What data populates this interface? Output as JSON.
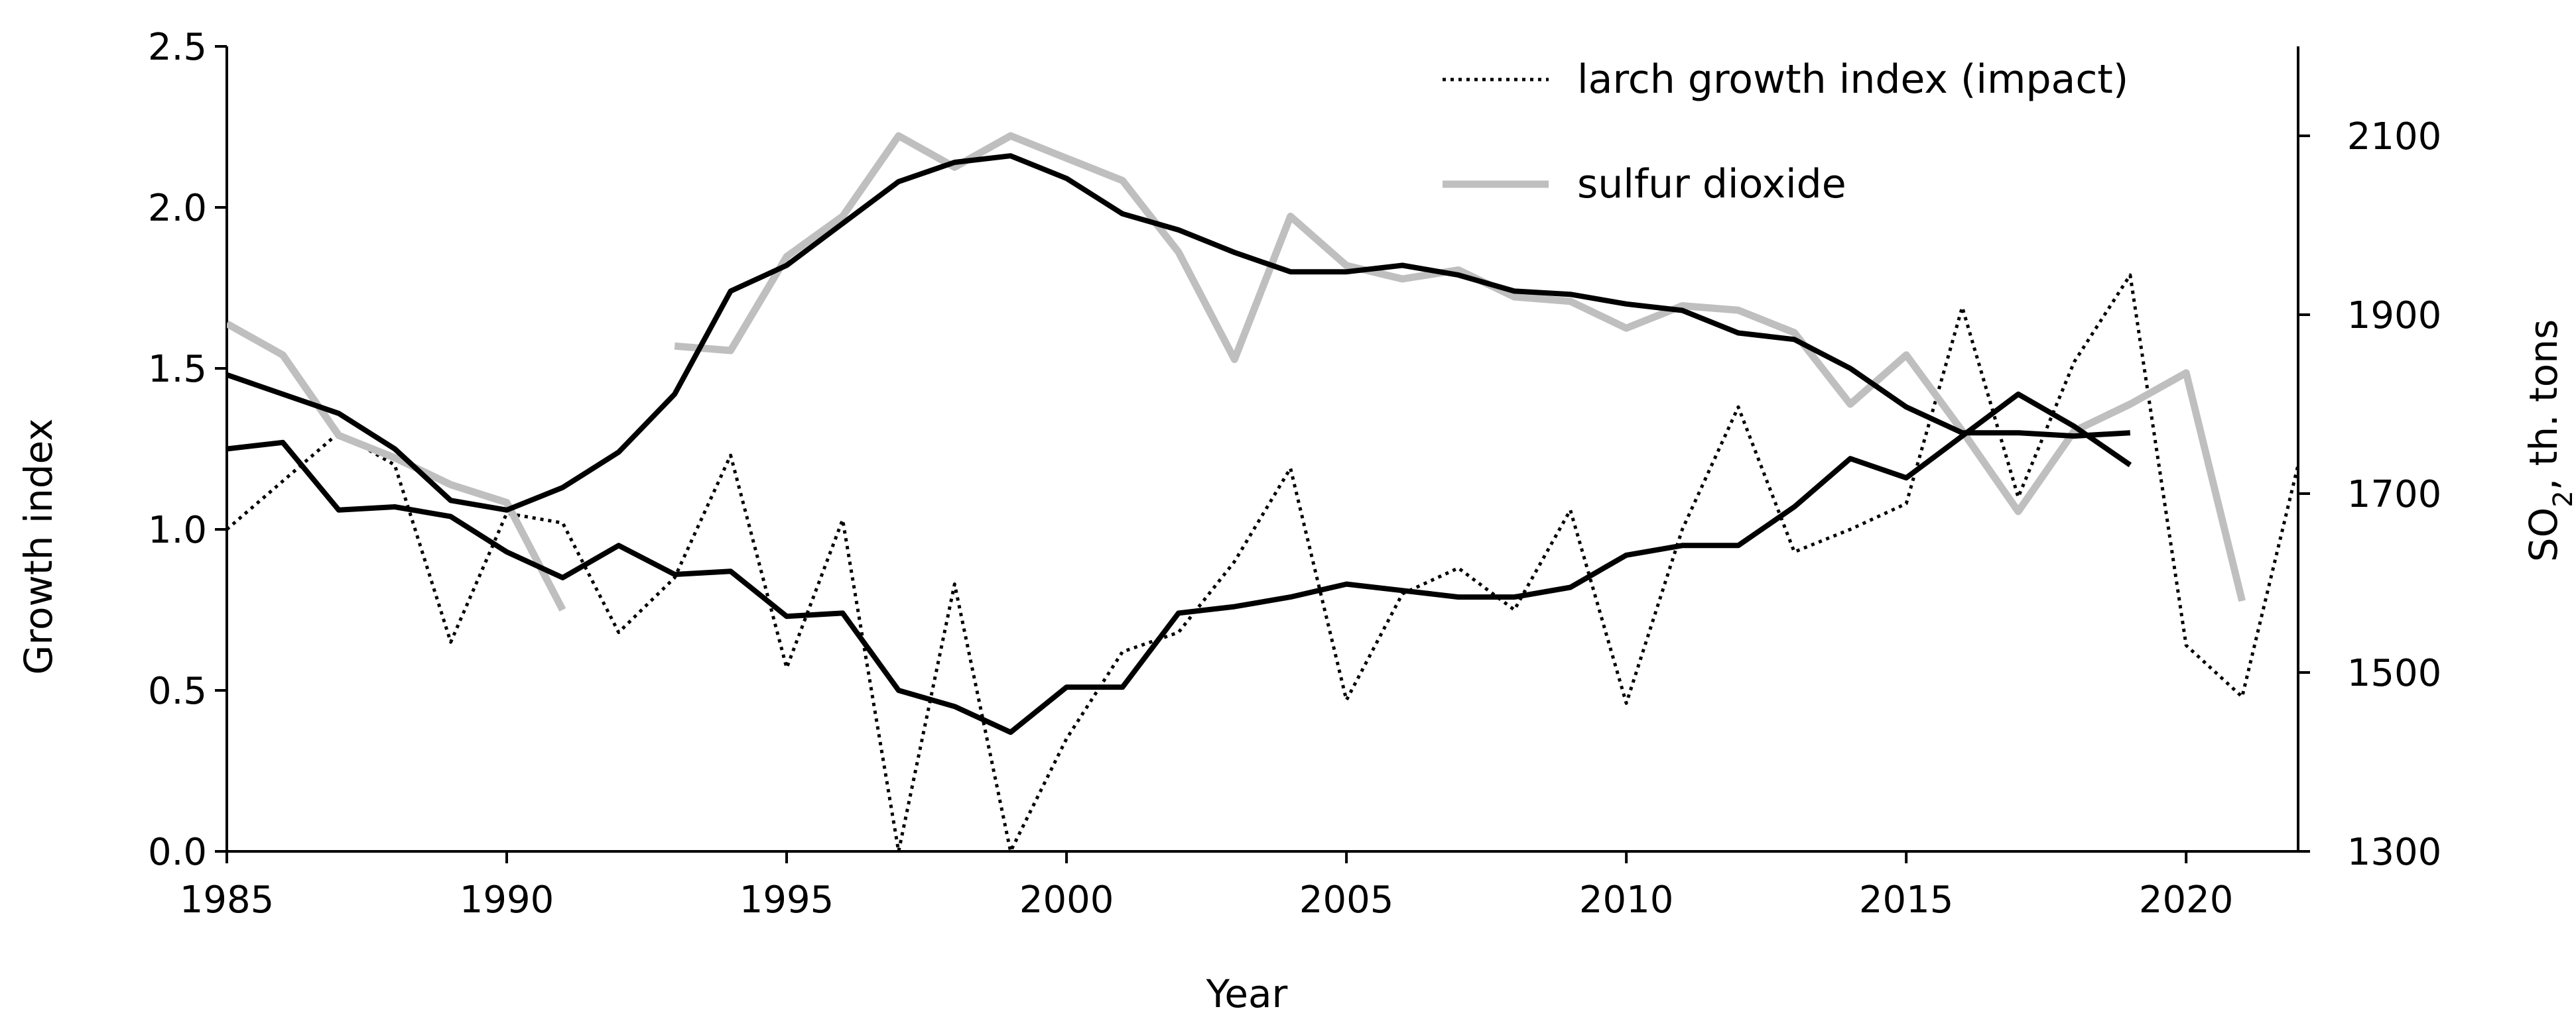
{
  "chart_data": {
    "type": "line",
    "title": "",
    "xlabel": "Year",
    "ylabel": "Growth index",
    "y2label": "SO",
    "y2label_sub": "2",
    "y2label_suffix": ", th. tons",
    "xlim": [
      1985,
      2022
    ],
    "ylim": [
      0,
      2.5
    ],
    "y2lim": [
      1300,
      2200
    ],
    "x_ticks": [
      1985,
      1990,
      1995,
      2000,
      2005,
      2010,
      2015,
      2020
    ],
    "y_ticks": [
      "0.0",
      "0.5",
      "1.0",
      "1.5",
      "2.0",
      "2.5"
    ],
    "y2_ticks": [
      1300,
      1500,
      1700,
      1900,
      2100
    ],
    "grid": false,
    "legend_placement": "top-right",
    "series": [
      {
        "name": "larch growth index (impact)",
        "axis": "left",
        "color": "#000000",
        "style": "dotted",
        "x": [
          1985,
          1986,
          1987,
          1988,
          1989,
          1990,
          1991,
          1992,
          1993,
          1994,
          1995,
          1996,
          1997,
          1998,
          1999,
          2000,
          2001,
          2002,
          2003,
          2004,
          2005,
          2006,
          2007,
          2008,
          2009,
          2010,
          2011,
          2012,
          2013,
          2014,
          2015,
          2016,
          2017,
          2018,
          2019,
          2020,
          2021,
          2022
        ],
        "y": [
          1.0,
          1.15,
          1.3,
          1.2,
          0.65,
          1.05,
          1.02,
          0.68,
          0.85,
          1.23,
          0.57,
          1.03,
          0.0,
          0.83,
          0.0,
          0.35,
          0.62,
          0.68,
          0.9,
          1.19,
          0.47,
          0.8,
          0.88,
          0.75,
          1.06,
          0.46,
          1.0,
          1.38,
          0.93,
          1.0,
          1.08,
          1.69,
          1.1,
          1.52,
          1.79,
          0.64,
          0.48,
          1.2
        ]
      },
      {
        "name": "sulfur dioxide",
        "axis": "right",
        "color": "#bfbfbf",
        "style": "solid",
        "segments": [
          {
            "x": [
              1985,
              1986,
              1987,
              1988,
              1989,
              1990,
              1991
            ],
            "y": [
              1890,
              1855,
              1765,
              1740,
              1710,
              1690,
              1570
            ]
          },
          {
            "x": [
              1993,
              1994,
              1995,
              1996,
              1997,
              1998,
              1999,
              2000,
              2001,
              2002,
              2003,
              2004,
              2005,
              2006,
              2007,
              2008,
              2009,
              2010,
              2011,
              2012,
              2013,
              2014,
              2015,
              2016,
              2017,
              2018,
              2019,
              2020,
              2021
            ],
            "y": [
              1865,
              1860,
              1965,
              2010,
              2100,
              2065,
              2100,
              2075,
              2050,
              1970,
              1850,
              2010,
              1955,
              1940,
              1950,
              1920,
              1915,
              1885,
              1910,
              1905,
              1880,
              1800,
              1855,
              1770,
              1680,
              1770,
              1800,
              1835,
              1580
            ]
          }
        ]
      },
      {
        "name": "",
        "axis": "left",
        "color": "#000000",
        "style": "solid",
        "x": [
          1985,
          1986,
          1987,
          1988,
          1989,
          1990,
          1991,
          1992,
          1993,
          1994,
          1995,
          1996,
          1997,
          1998,
          1999,
          2000,
          2001,
          2002,
          2003,
          2004,
          2005,
          2006,
          2007,
          2008,
          2009,
          2010,
          2011,
          2012,
          2013,
          2014,
          2015,
          2016,
          2017,
          2018,
          2019
        ],
        "y": [
          1.25,
          1.27,
          1.06,
          1.07,
          1.04,
          0.93,
          0.85,
          0.95,
          0.86,
          0.87,
          0.73,
          0.74,
          0.5,
          0.45,
          0.37,
          0.51,
          0.51,
          0.74,
          0.76,
          0.79,
          0.83,
          0.81,
          0.79,
          0.79,
          0.82,
          0.92,
          0.95,
          0.95,
          1.07,
          1.22,
          1.16,
          1.29,
          1.42,
          1.32,
          1.2
        ]
      },
      {
        "name": "",
        "axis": "left",
        "color": "#000000",
        "style": "solid",
        "x": [
          1985,
          1986,
          1987,
          1988,
          1989,
          1990,
          1991,
          1992,
          1993,
          1994,
          1995,
          1996,
          1997,
          1998,
          1999,
          2000,
          2001,
          2002,
          2003,
          2004,
          2005,
          2006,
          2007,
          2008,
          2009,
          2010,
          2011,
          2012,
          2013,
          2014,
          2015,
          2016,
          2017,
          2018,
          2019
        ],
        "y": [
          1.48,
          1.42,
          1.36,
          1.25,
          1.09,
          1.06,
          1.13,
          1.24,
          1.42,
          1.74,
          1.82,
          1.95,
          2.08,
          2.14,
          2.16,
          2.09,
          1.98,
          1.93,
          1.86,
          1.8,
          1.8,
          1.82,
          1.79,
          1.74,
          1.73,
          1.7,
          1.68,
          1.61,
          1.59,
          1.5,
          1.38,
          1.3,
          1.3,
          1.29,
          1.3
        ]
      }
    ]
  }
}
